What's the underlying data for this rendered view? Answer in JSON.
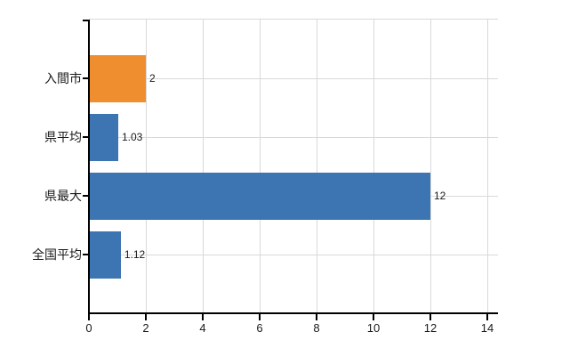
{
  "chart_data": {
    "type": "bar",
    "orientation": "horizontal",
    "title": "",
    "xlabel": "",
    "ylabel": "",
    "categories": [
      "入間市",
      "県平均",
      "県最大",
      "全国平均"
    ],
    "values": [
      2,
      1.03,
      12,
      1.12
    ],
    "value_labels": [
      "2",
      "1.03",
      "12",
      "1.12"
    ],
    "bar_colors": [
      "#EF8E2F",
      "#3D74B2",
      "#3D74B2",
      "#3D74B2"
    ],
    "xlim": [
      0,
      14.375
    ],
    "xticks": [
      0,
      2,
      4,
      6,
      8,
      10,
      12,
      14
    ],
    "xtick_labels": [
      "0",
      "2",
      "4",
      "6",
      "8",
      "10",
      "12",
      "14"
    ],
    "grid": true,
    "legend": "none",
    "colors": {
      "background": "#ffffff",
      "grid": "#d9d9d9",
      "axis": "#000000",
      "text": "#1a1a1a",
      "bar_blue": "#3D74B2",
      "bar_orange": "#EF8E2F"
    }
  }
}
